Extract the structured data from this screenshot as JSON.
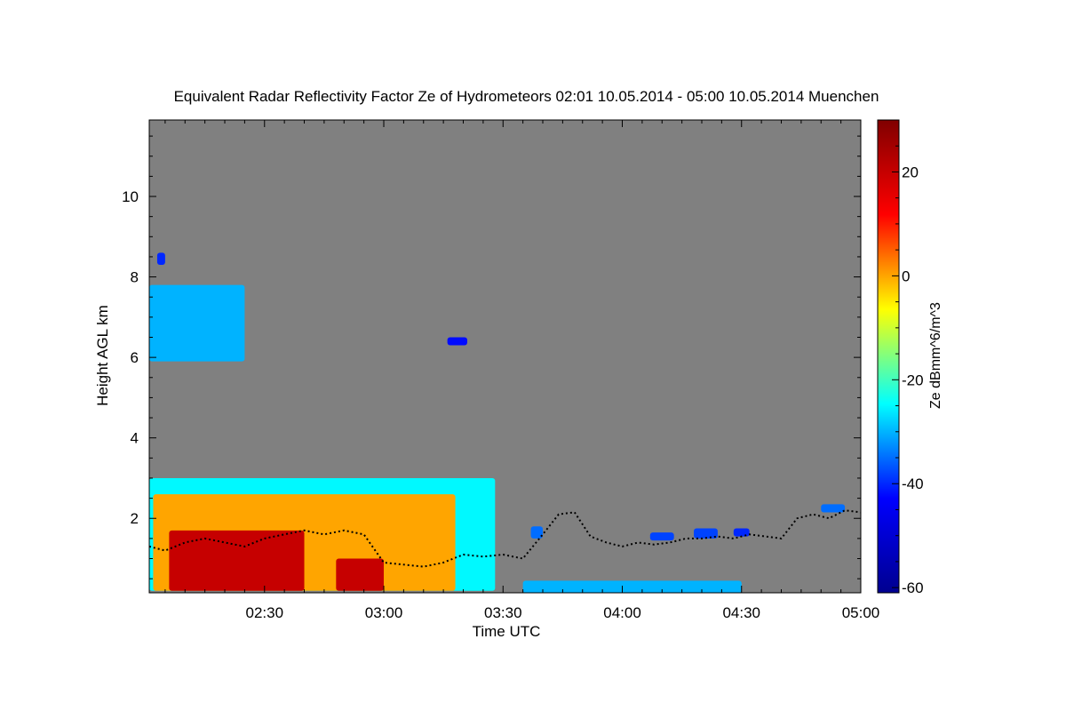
{
  "chart_data": {
    "type": "heatmap",
    "title": "Equivalent Radar Reflectivity Factor Ze of Hydrometeors   02:01 10.05.2014 - 05:00 10.05.2014 Muenchen",
    "xlabel": "Time UTC",
    "ylabel": "Height AGL km",
    "colorbar_label": "Ze dBmm^6/m^3",
    "background_color": "#808080",
    "x_unit": "minutes after 02:00 UTC",
    "xlim": [
      1,
      180
    ],
    "ylim": [
      0.15,
      11.9
    ],
    "x_ticks": [
      {
        "value": 30,
        "label": "02:30"
      },
      {
        "value": 60,
        "label": "03:00"
      },
      {
        "value": 90,
        "label": "03:30"
      },
      {
        "value": 120,
        "label": "04:00"
      },
      {
        "value": 150,
        "label": "04:30"
      },
      {
        "value": 180,
        "label": "05:00"
      }
    ],
    "y_ticks": [
      {
        "value": 2,
        "label": "2"
      },
      {
        "value": 4,
        "label": "4"
      },
      {
        "value": 6,
        "label": "6"
      },
      {
        "value": 8,
        "label": "8"
      },
      {
        "value": 10,
        "label": "10"
      }
    ],
    "colorbar": {
      "range": [
        -61,
        30
      ],
      "ticks": [
        {
          "value": 20,
          "label": "20"
        },
        {
          "value": 0,
          "label": "0"
        },
        {
          "value": -20,
          "label": "-20"
        },
        {
          "value": -40,
          "label": "-40"
        },
        {
          "value": -60,
          "label": "-60"
        }
      ],
      "colormap": [
        "#00008f",
        "#0000ff",
        "#00ffff",
        "#ffff00",
        "#ff0000",
        "#800000"
      ]
    },
    "echo_regions": [
      {
        "name": "upper-cloud-layer",
        "x_start": 1,
        "x_end": 25,
        "height_bottom_km": 5.9,
        "height_top_km": 7.8,
        "ze_dbz": -30
      },
      {
        "name": "small-echo-8-5km",
        "x_start": 3,
        "x_end": 5,
        "height_bottom_km": 8.3,
        "height_top_km": 8.6,
        "ze_dbz": -40
      },
      {
        "name": "small-echo-6-4km",
        "x_start": 76,
        "x_end": 81,
        "height_bottom_km": 6.3,
        "height_top_km": 6.5,
        "ze_dbz": -42
      },
      {
        "name": "low-precip-layer-edge",
        "x_start": 1,
        "x_end": 88,
        "height_bottom_km": 0.2,
        "height_top_km": 3.0,
        "ze_dbz": -25
      },
      {
        "name": "low-precip-layer-body",
        "x_start": 2,
        "x_end": 78,
        "height_bottom_km": 0.2,
        "height_top_km": 2.6,
        "ze_dbz": 0
      },
      {
        "name": "rain-core-main",
        "x_start": 6,
        "x_end": 40,
        "height_bottom_km": 0.2,
        "height_top_km": 1.7,
        "ze_dbz": 20
      },
      {
        "name": "rain-core-second",
        "x_start": 48,
        "x_end": 60,
        "height_bottom_km": 0.2,
        "height_top_km": 1.0,
        "ze_dbz": 20
      },
      {
        "name": "light-echo-1",
        "x_start": 97,
        "x_end": 100,
        "height_bottom_km": 1.5,
        "height_top_km": 1.8,
        "ze_dbz": -35
      },
      {
        "name": "light-echo-2",
        "x_start": 127,
        "x_end": 133,
        "height_bottom_km": 1.45,
        "height_top_km": 1.65,
        "ze_dbz": -38
      },
      {
        "name": "light-echo-3",
        "x_start": 138,
        "x_end": 144,
        "height_bottom_km": 1.5,
        "height_top_km": 1.75,
        "ze_dbz": -38
      },
      {
        "name": "light-echo-4",
        "x_start": 148,
        "x_end": 152,
        "height_bottom_km": 1.55,
        "height_top_km": 1.75,
        "ze_dbz": -40
      },
      {
        "name": "light-echo-5",
        "x_start": 170,
        "x_end": 176,
        "height_bottom_km": 2.15,
        "height_top_km": 2.35,
        "ze_dbz": -35
      },
      {
        "name": "surface-clutter",
        "x_start": 95,
        "x_end": 150,
        "height_bottom_km": 0.15,
        "height_top_km": 0.45,
        "ze_dbz": -30
      }
    ],
    "cloud_base_series": {
      "name": "cloud-base",
      "color": "#000000",
      "x": [
        1,
        5,
        10,
        15,
        20,
        25,
        30,
        35,
        40,
        45,
        50,
        55,
        60,
        65,
        70,
        75,
        80,
        85,
        90,
        95,
        100,
        104,
        108,
        112,
        116,
        120,
        124,
        128,
        132,
        136,
        140,
        144,
        148,
        152,
        156,
        160,
        164,
        168,
        172,
        176,
        180
      ],
      "y": [
        1.3,
        1.2,
        1.4,
        1.5,
        1.4,
        1.3,
        1.5,
        1.6,
        1.7,
        1.6,
        1.7,
        1.6,
        0.9,
        0.85,
        0.8,
        0.9,
        1.1,
        1.05,
        1.1,
        1.0,
        1.6,
        2.1,
        2.15,
        1.55,
        1.4,
        1.3,
        1.4,
        1.35,
        1.4,
        1.5,
        1.5,
        1.55,
        1.5,
        1.6,
        1.55,
        1.5,
        2.0,
        2.1,
        2.0,
        2.2,
        2.15
      ]
    }
  }
}
